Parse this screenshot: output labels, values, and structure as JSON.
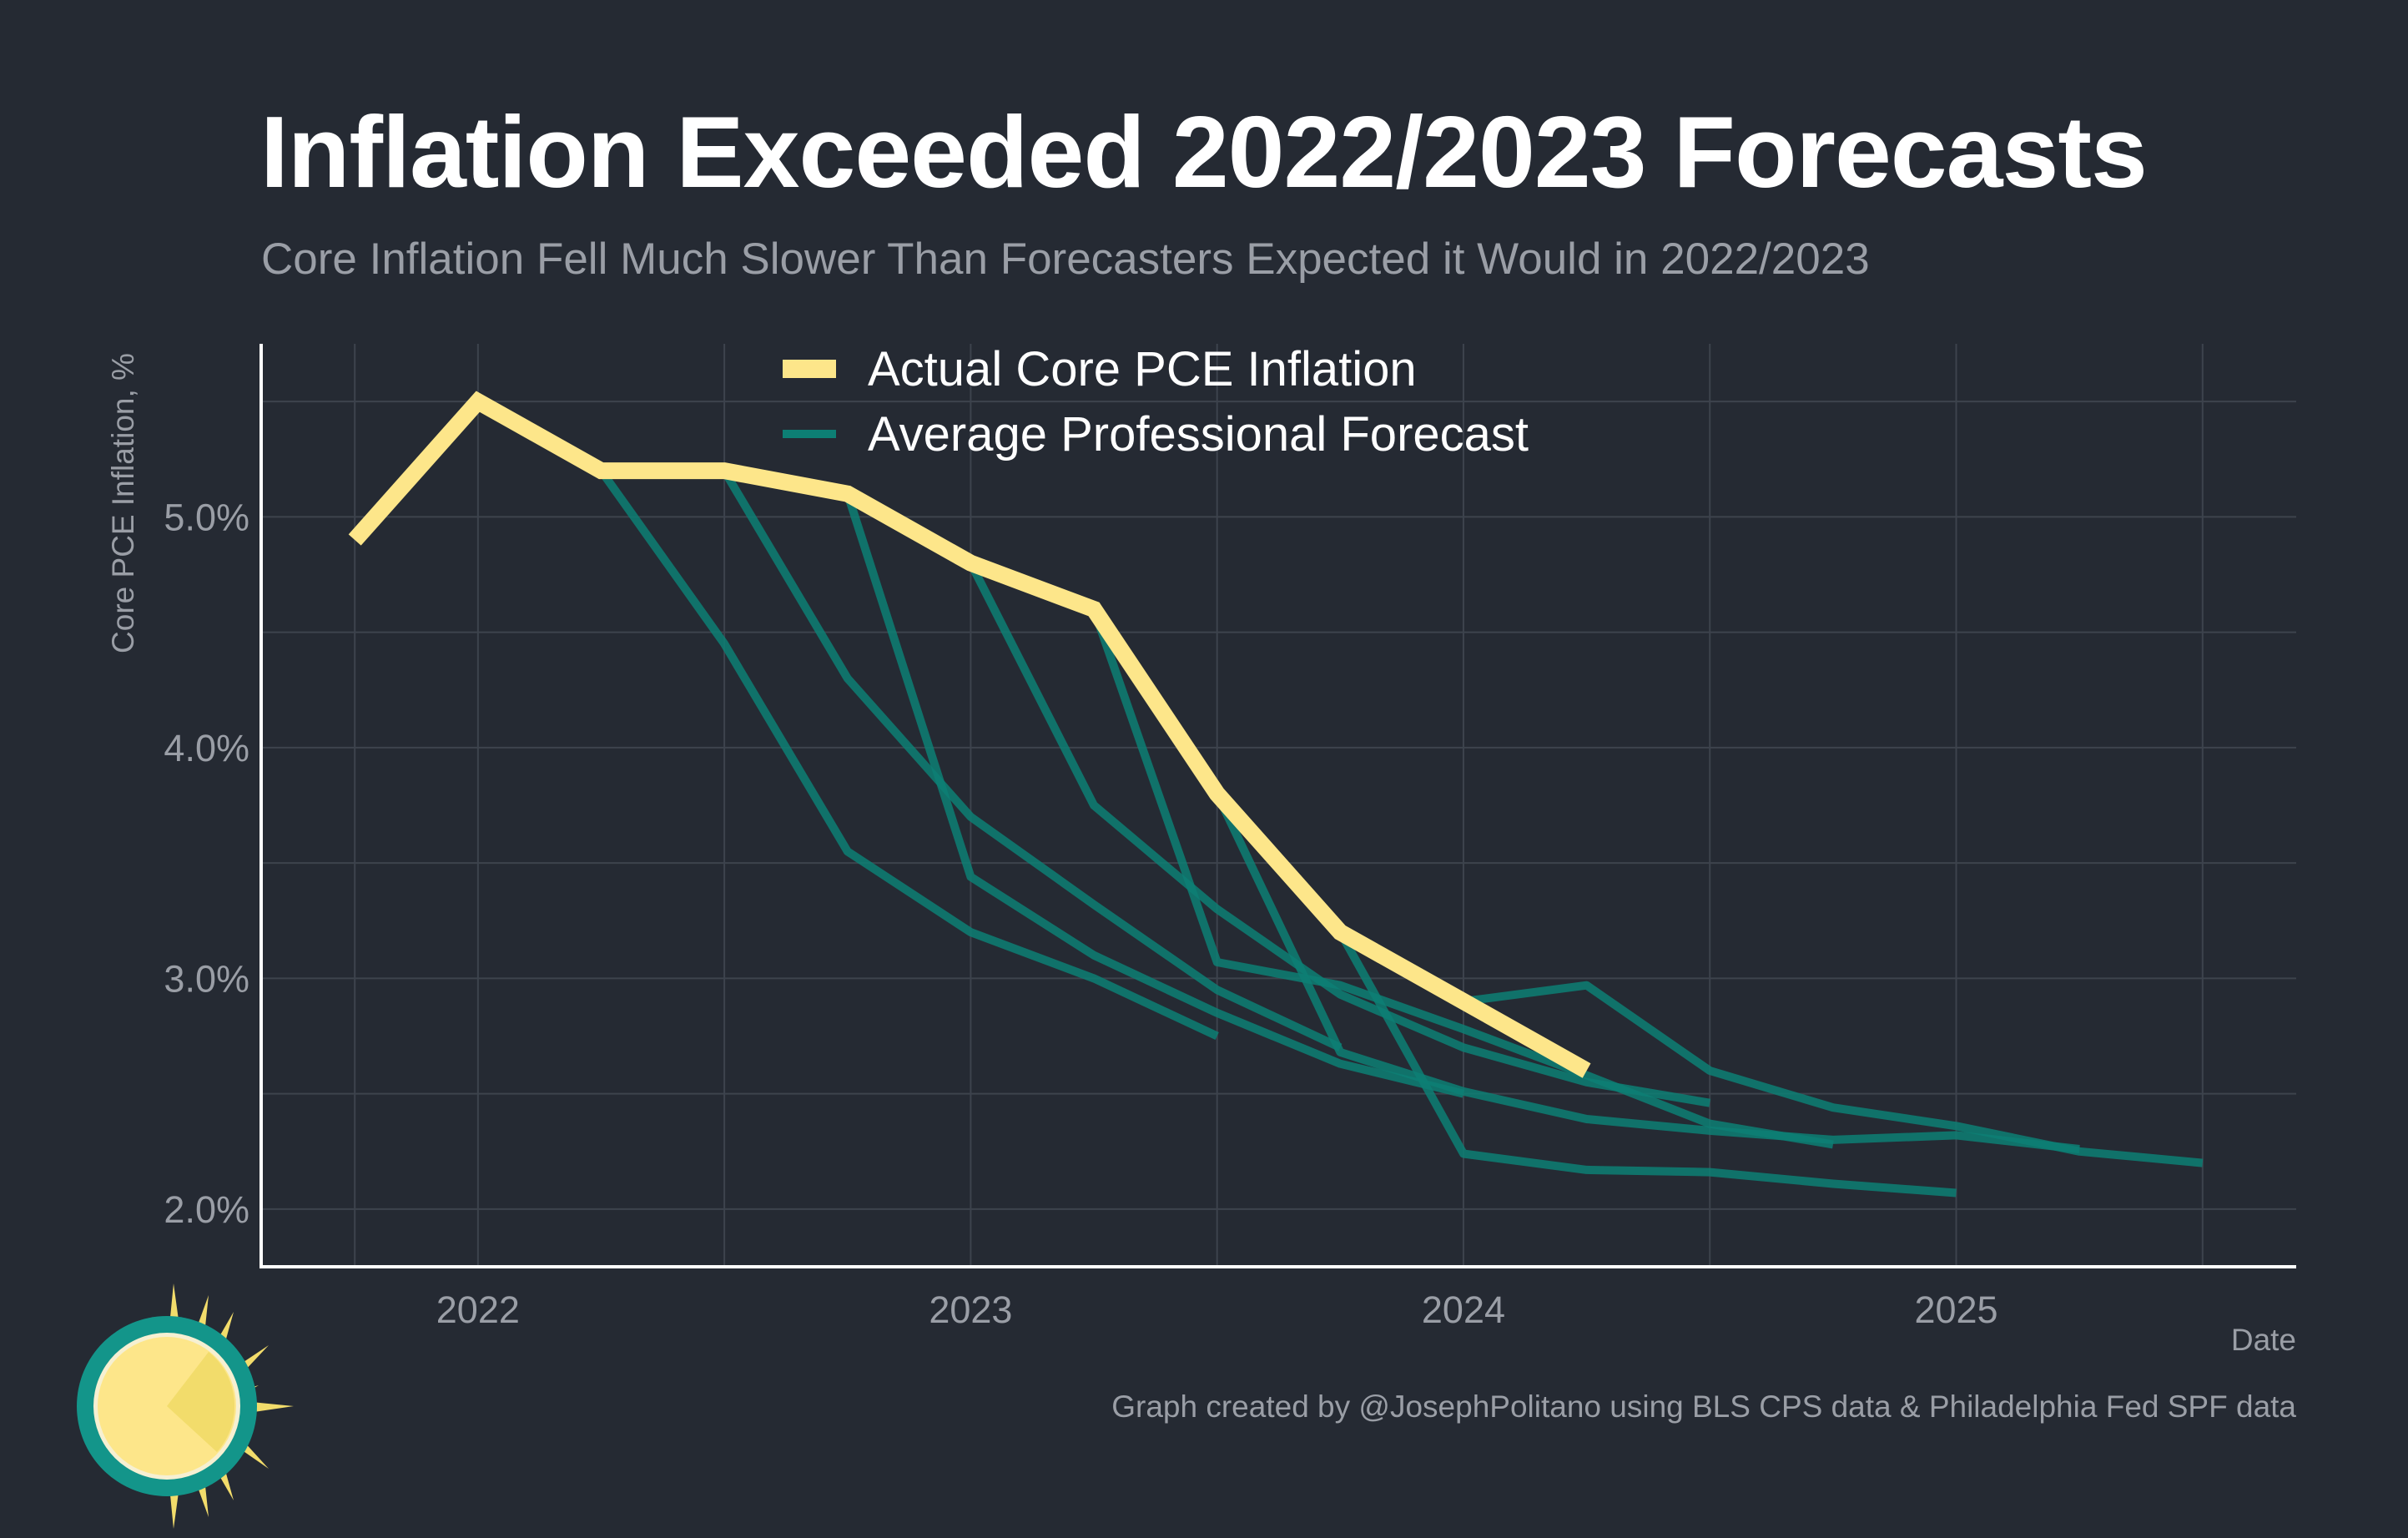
{
  "header": {
    "title": "Inflation Exceeded 2022/2023 Forecasts",
    "subtitle": "Core Inflation Fell Much Slower Than Forecasters Expected it Would in 2022/2023"
  },
  "footer": {
    "caption": "Graph created by @JosephPolitano using BLS CPS data & Philadelphia Fed SPF data"
  },
  "colors": {
    "background": "#252a33",
    "actual": "#fde68a",
    "forecast": "#0d7f74",
    "grid": "#3d434d",
    "axis": "#ffffff"
  },
  "chart_data": {
    "type": "line",
    "title": "Inflation Exceeded 2022/2023 Forecasts",
    "subtitle": "Core Inflation Fell Much Slower Than Forecasters Expected it Would in 2022/2023",
    "xlabel": "Date",
    "ylabel": "Core PCE Inflation, %",
    "xlim": [
      2021.56,
      2025.69
    ],
    "ylim": [
      1.75,
      5.75
    ],
    "x_ticks": [
      {
        "value": 2022,
        "label": "2022"
      },
      {
        "value": 2023,
        "label": "2023"
      },
      {
        "value": 2024,
        "label": "2024"
      },
      {
        "value": 2025,
        "label": "2025"
      }
    ],
    "y_ticks": [
      {
        "value": 2.0,
        "label": "2.0%"
      },
      {
        "value": 3.0,
        "label": "3.0%"
      },
      {
        "value": 4.0,
        "label": "4.0%"
      },
      {
        "value": 5.0,
        "label": "5.0%"
      }
    ],
    "grid": true,
    "legend": {
      "position": "top-center",
      "entries": [
        {
          "label": "Actual Core PCE Inflation",
          "series": "actual"
        },
        {
          "label": "Average Professional Forecast",
          "series": "forecast"
        }
      ]
    },
    "series": [
      {
        "name": "Actual Core PCE Inflation",
        "role": "actual",
        "points": [
          [
            2021.75,
            4.9
          ],
          [
            2022.0,
            5.5
          ],
          [
            2022.25,
            5.2
          ],
          [
            2022.5,
            5.2
          ],
          [
            2022.75,
            5.1
          ],
          [
            2023.0,
            4.8
          ],
          [
            2023.25,
            4.6
          ],
          [
            2023.5,
            3.8
          ],
          [
            2023.75,
            3.2
          ],
          [
            2024.0,
            2.9
          ],
          [
            2024.25,
            2.6
          ]
        ]
      },
      {
        "name": "Average Professional Forecast",
        "role": "forecast",
        "forecasts": [
          [
            [
              2022.25,
              5.2
            ],
            [
              2022.5,
              4.45
            ],
            [
              2022.75,
              3.55
            ],
            [
              2023.0,
              3.2
            ],
            [
              2023.25,
              3.0
            ],
            [
              2023.5,
              2.75
            ]
          ],
          [
            [
              2022.5,
              5.2
            ],
            [
              2022.75,
              4.3
            ],
            [
              2023.0,
              3.7
            ],
            [
              2023.25,
              3.32
            ],
            [
              2023.5,
              2.95
            ],
            [
              2023.75,
              2.7
            ]
          ],
          [
            [
              2022.75,
              5.1
            ],
            [
              2023.0,
              3.44
            ],
            [
              2023.25,
              3.1
            ],
            [
              2023.5,
              2.85
            ],
            [
              2023.75,
              2.63
            ],
            [
              2024.0,
              2.5
            ]
          ],
          [
            [
              2023.0,
              4.8
            ],
            [
              2023.25,
              3.75
            ],
            [
              2023.5,
              3.3
            ],
            [
              2023.75,
              2.93
            ],
            [
              2024.0,
              2.7
            ],
            [
              2024.25,
              2.55
            ],
            [
              2024.5,
              2.46
            ]
          ],
          [
            [
              2023.25,
              4.6
            ],
            [
              2023.5,
              3.07
            ],
            [
              2023.75,
              2.97
            ],
            [
              2024.0,
              2.78
            ],
            [
              2024.25,
              2.58
            ],
            [
              2024.5,
              2.37
            ],
            [
              2024.75,
              2.28
            ]
          ],
          [
            [
              2023.5,
              3.8
            ],
            [
              2023.75,
              2.68
            ],
            [
              2024.0,
              2.51
            ],
            [
              2024.25,
              2.39
            ],
            [
              2024.5,
              2.34
            ],
            [
              2024.75,
              2.3
            ],
            [
              2025.0,
              2.32
            ],
            [
              2025.25,
              2.26
            ]
          ],
          [
            [
              2023.75,
              3.2
            ],
            [
              2024.0,
              2.24
            ],
            [
              2024.25,
              2.17
            ],
            [
              2024.5,
              2.16
            ],
            [
              2024.75,
              2.11
            ],
            [
              2025.0,
              2.07
            ]
          ],
          [
            [
              2024.0,
              2.9
            ],
            [
              2024.25,
              2.97
            ],
            [
              2024.5,
              2.6
            ],
            [
              2024.75,
              2.44
            ],
            [
              2025.0,
              2.36
            ],
            [
              2025.25,
              2.25
            ],
            [
              2025.5,
              2.2
            ]
          ]
        ]
      }
    ]
  }
}
